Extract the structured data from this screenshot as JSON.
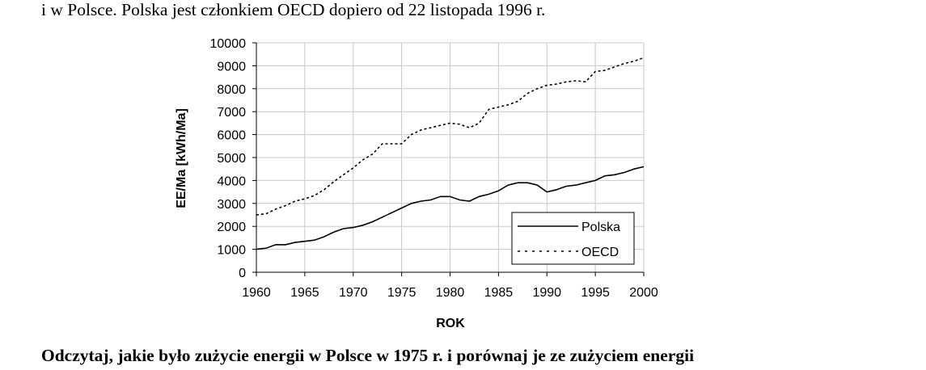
{
  "text": {
    "top": "i w Polsce. Polska jest członkiem OECD dopiero od 22 listopada 1996 r.",
    "bottom": "Odczytaj, jakie było zużycie energii w Polsce w 1975 r. i porównaj je ze zużyciem energii"
  },
  "chart_data": {
    "type": "line",
    "title": "",
    "xlabel": "ROK",
    "ylabel": "EE/Ma [kWh/Ma]",
    "xlim": [
      1960,
      2000
    ],
    "ylim": [
      0,
      10000
    ],
    "xticks": [
      1960,
      1965,
      1970,
      1975,
      1980,
      1985,
      1990,
      1995,
      2000
    ],
    "yticks": [
      0,
      1000,
      2000,
      3000,
      4000,
      5000,
      6000,
      7000,
      8000,
      9000,
      10000
    ],
    "grid": true,
    "legend_position": "bottom-right",
    "x": [
      1960,
      1961,
      1962,
      1963,
      1964,
      1965,
      1966,
      1967,
      1968,
      1969,
      1970,
      1971,
      1972,
      1973,
      1974,
      1975,
      1976,
      1977,
      1978,
      1979,
      1980,
      1981,
      1982,
      1983,
      1984,
      1985,
      1986,
      1987,
      1988,
      1989,
      1990,
      1991,
      1992,
      1993,
      1994,
      1995,
      1996,
      1997,
      1998,
      1999,
      2000
    ],
    "series": [
      {
        "name": "Polska",
        "style": "solid",
        "values": [
          1000,
          1050,
          1200,
          1200,
          1300,
          1350,
          1400,
          1550,
          1750,
          1900,
          1950,
          2050,
          2200,
          2400,
          2600,
          2800,
          3000,
          3100,
          3150,
          3300,
          3300,
          3150,
          3100,
          3300,
          3400,
          3550,
          3800,
          3900,
          3900,
          3800,
          3500,
          3600,
          3750,
          3800,
          3900,
          4000,
          4200,
          4250,
          4350,
          4500,
          4600
        ]
      },
      {
        "name": "OECD",
        "style": "dashed",
        "values": [
          2500,
          2550,
          2750,
          2900,
          3100,
          3200,
          3350,
          3600,
          3950,
          4250,
          4550,
          4900,
          5150,
          5600,
          5600,
          5600,
          6000,
          6200,
          6300,
          6400,
          6500,
          6450,
          6300,
          6500,
          7100,
          7200,
          7300,
          7450,
          7800,
          8000,
          8150,
          8200,
          8300,
          8350,
          8300,
          8750,
          8800,
          8950,
          9100,
          9200,
          9350
        ]
      }
    ]
  }
}
